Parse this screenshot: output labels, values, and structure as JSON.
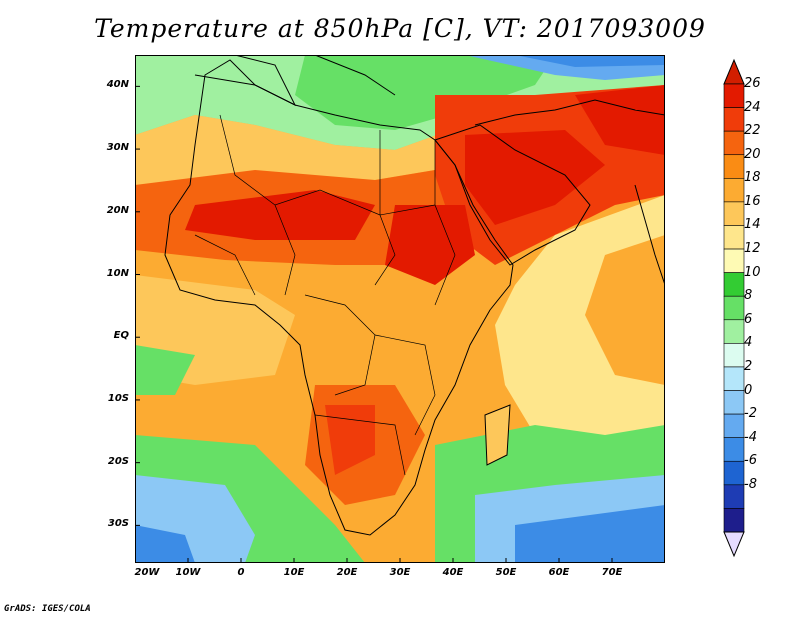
{
  "title": "Temperature at 850hPa [C], VT: 2017093009",
  "credit": "GrADS: IGES/COLA",
  "map": {
    "lon_range": [
      -20,
      80
    ],
    "lat_range": [
      -36,
      45
    ],
    "lat_ticks": [
      {
        "value": 40,
        "label": "40N"
      },
      {
        "value": 30,
        "label": "30N"
      },
      {
        "value": 20,
        "label": "20N"
      },
      {
        "value": 10,
        "label": "10N"
      },
      {
        "value": 0,
        "label": "EQ"
      },
      {
        "value": -10,
        "label": "10S"
      },
      {
        "value": -20,
        "label": "20S"
      },
      {
        "value": -30,
        "label": "30S"
      }
    ],
    "lon_ticks": [
      {
        "value": -20,
        "label": "20W"
      },
      {
        "value": -10,
        "label": "10W"
      },
      {
        "value": 0,
        "label": "0"
      },
      {
        "value": 10,
        "label": "10E"
      },
      {
        "value": 20,
        "label": "20E"
      },
      {
        "value": 30,
        "label": "30E"
      },
      {
        "value": 40,
        "label": "40E"
      },
      {
        "value": 50,
        "label": "50E"
      },
      {
        "value": 60,
        "label": "60E"
      },
      {
        "value": 70,
        "label": "70E"
      }
    ]
  },
  "colorbar": {
    "labels": [
      "26",
      "24",
      "22",
      "20",
      "18",
      "16",
      "14",
      "12",
      "10",
      "8",
      "6",
      "4",
      "2",
      "0",
      "-2",
      "-4",
      "-6",
      "-8"
    ],
    "colors": [
      "#e31a00",
      "#f03c0a",
      "#f5640f",
      "#fa8c14",
      "#fcab32",
      "#fdc75a",
      "#fee68c",
      "#fefab4",
      "#33cc33",
      "#66e066",
      "#a0f0a0",
      "#dcfcf0",
      "#b4e6fa",
      "#8cc8f5",
      "#64aaf0",
      "#3c8ce6",
      "#1e64d2",
      "#1e3cb4",
      "#1e1e8c"
    ],
    "end_colors": {
      "top": "#d21e00",
      "bottom": "#e6dcff"
    }
  }
}
